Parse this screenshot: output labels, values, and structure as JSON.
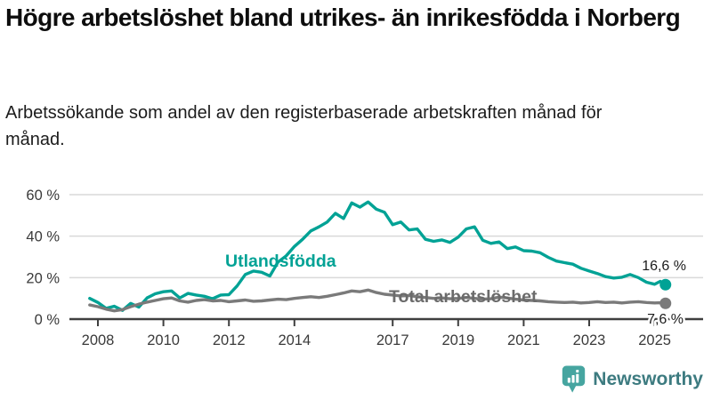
{
  "header": {
    "title": "Högre arbetslöshet bland utrikes- än inrikesfödda i Norberg",
    "subtitle": "Arbetssökande som andel av den registerbaserade arbetskraften månad för månad."
  },
  "branding": {
    "name": "Newsworthy",
    "icon": "bar-chart-speech-bubble-icon",
    "icon_color": "#46a5a0",
    "text_color": "#3d7b80"
  },
  "chart_data": {
    "type": "line",
    "unit": "%",
    "ylim": [
      0,
      60
    ],
    "grid": "horizontal",
    "grid_color": "#d9d9d9",
    "axis_color": "#3f3f3f",
    "tick_label_color": "#3a3a3a",
    "value_label_color": "#1c1c1c",
    "yticks": [
      {
        "value": 0,
        "label": "0 %"
      },
      {
        "value": 20,
        "label": "20 %"
      },
      {
        "value": 40,
        "label": "40 %"
      },
      {
        "value": 60,
        "label": "60 %"
      }
    ],
    "xticks": [
      {
        "value": 2008,
        "label": "2008"
      },
      {
        "value": 2010,
        "label": "2010"
      },
      {
        "value": 2012,
        "label": "2012"
      },
      {
        "value": 2014,
        "label": "2014"
      },
      {
        "value": 2017,
        "label": "2017"
      },
      {
        "value": 2019,
        "label": "2019"
      },
      {
        "value": 2021,
        "label": "2021"
      },
      {
        "value": 2023,
        "label": "2023"
      },
      {
        "value": 2025,
        "label": "2025"
      }
    ],
    "x": [
      2007.75,
      2008,
      2008.25,
      2008.5,
      2008.75,
      2009,
      2009.25,
      2009.5,
      2009.75,
      2010,
      2010.25,
      2010.5,
      2010.75,
      2011,
      2011.25,
      2011.5,
      2011.75,
      2012,
      2012.25,
      2012.5,
      2012.75,
      2013,
      2013.25,
      2013.5,
      2013.75,
      2014,
      2014.25,
      2014.5,
      2014.75,
      2015,
      2015.25,
      2015.5,
      2015.75,
      2016,
      2016.25,
      2016.5,
      2016.75,
      2017,
      2017.25,
      2017.5,
      2017.75,
      2018,
      2018.25,
      2018.5,
      2018.75,
      2019,
      2019.25,
      2019.5,
      2019.75,
      2020,
      2020.25,
      2020.5,
      2020.75,
      2021,
      2021.25,
      2021.5,
      2021.75,
      2022,
      2022.25,
      2022.5,
      2022.75,
      2023,
      2023.25,
      2023.5,
      2023.75,
      2024,
      2024.25,
      2024.5,
      2024.75,
      2025,
      2025.17,
      2025.33
    ],
    "series": [
      {
        "name": "Utlandsfödda",
        "color": "#00a295",
        "label_color": "#00a295",
        "end_label": "16,6 %",
        "end_value": 16.6,
        "values": [
          10.0,
          8.0,
          5.2,
          6.2,
          4.2,
          7.6,
          5.8,
          10.2,
          12.2,
          13.2,
          13.6,
          10.2,
          12.4,
          11.6,
          11.0,
          9.8,
          11.6,
          11.8,
          16.0,
          21.5,
          23.2,
          22.6,
          20.8,
          27.5,
          30.5,
          35.0,
          38.5,
          42.5,
          44.5,
          46.8,
          51.0,
          48.5,
          56.0,
          54.0,
          56.5,
          53.0,
          51.5,
          45.5,
          46.8,
          43.0,
          43.5,
          38.5,
          37.5,
          38.2,
          37.0,
          39.5,
          43.5,
          44.5,
          38.0,
          36.5,
          37.2,
          34.0,
          34.8,
          33.0,
          32.8,
          32.0,
          29.8,
          28.0,
          27.2,
          26.5,
          24.5,
          23.2,
          22.0,
          20.5,
          19.8,
          20.2,
          21.5,
          20.0,
          17.8,
          16.8,
          18.2,
          16.6
        ]
      },
      {
        "name": "Total arbetslöshet",
        "color": "#7a7a7a",
        "label_color": "#6b6b6b",
        "end_label": "7,6 %",
        "end_value": 7.6,
        "values": [
          6.8,
          6.0,
          4.8,
          4.0,
          4.6,
          6.0,
          7.2,
          8.2,
          9.0,
          9.8,
          10.2,
          8.8,
          8.2,
          9.0,
          9.4,
          8.8,
          9.0,
          8.4,
          8.8,
          9.2,
          8.6,
          8.8,
          9.2,
          9.6,
          9.4,
          10.0,
          10.4,
          10.8,
          10.4,
          11.0,
          11.8,
          12.6,
          13.6,
          13.2,
          14.0,
          12.8,
          12.0,
          11.6,
          11.2,
          11.4,
          10.8,
          10.4,
          10.0,
          10.2,
          9.8,
          10.0,
          10.4,
          10.0,
          9.6,
          9.8,
          10.6,
          10.2,
          9.6,
          9.2,
          9.0,
          8.8,
          8.4,
          8.2,
          8.0,
          8.2,
          7.8,
          8.0,
          8.4,
          8.0,
          8.2,
          7.8,
          8.2,
          8.4,
          8.0,
          7.8,
          7.9,
          7.6
        ]
      }
    ]
  }
}
